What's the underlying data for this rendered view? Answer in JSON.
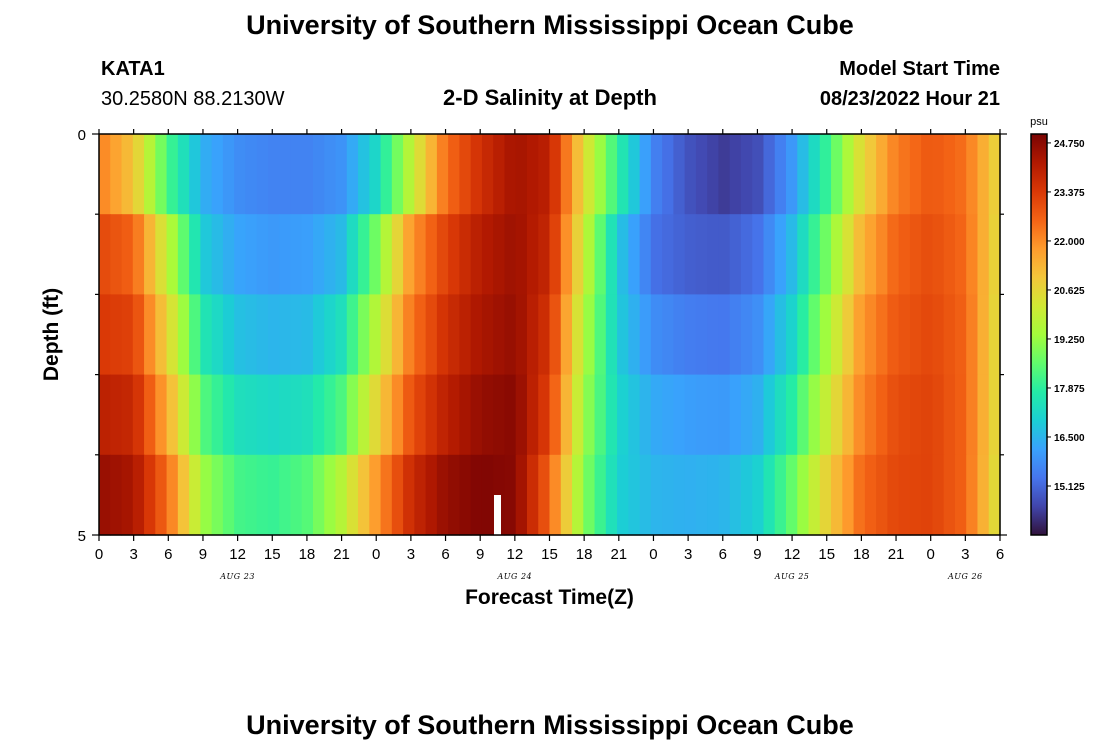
{
  "title": "University of Southern Mississippi Ocean Cube",
  "footer_title": "University of Southern Mississippi Ocean Cube",
  "station": {
    "id": "KATA1",
    "coords": "30.2580N  88.2130W"
  },
  "model": {
    "label": "Model Start Time",
    "value": "08/23/2022 Hour 21"
  },
  "chart_data": {
    "type": "heatmap",
    "title": "2-D Salinity at Depth",
    "xlabel": "Forecast Time(Z)",
    "ylabel": "Depth (ft)",
    "x_tick_labels": [
      "0",
      "3",
      "6",
      "9",
      "12",
      "15",
      "18",
      "21",
      "0",
      "3",
      "6",
      "9",
      "12",
      "15",
      "18",
      "21",
      "0",
      "3",
      "6",
      "9",
      "12",
      "15",
      "18",
      "21",
      "0",
      "3",
      "6"
    ],
    "date_labels": [
      {
        "text": "AUG 23",
        "tick_index": 4
      },
      {
        "text": "AUG 24",
        "tick_index": 12
      },
      {
        "text": "AUG 25",
        "tick_index": 20
      },
      {
        "text": "AUG 26",
        "tick_index": 25
      }
    ],
    "hours": [
      0,
      78
    ],
    "y_tick_labels": [
      "0",
      "5"
    ],
    "depth_range": [
      0,
      5
    ],
    "depth_levels": 5,
    "current_time_hour": 34.5,
    "colorbar": {
      "unit": "psu",
      "min": 13.75,
      "max": 25.0,
      "tick_labels": [
        "24.750",
        "23.375",
        "22.000",
        "20.625",
        "19.250",
        "17.875",
        "16.500",
        "15.125"
      ],
      "colors": [
        "#30123b",
        "#4145ab",
        "#4675ed",
        "#39a2fc",
        "#1bcfd4",
        "#24eca6",
        "#61fc6c",
        "#a4fc3b",
        "#d1e834",
        "#f3c63a",
        "#fe9b2d",
        "#f36315",
        "#d93806",
        "#b11901",
        "#7a0403"
      ]
    },
    "rows": [
      {
        "depth": "0-1",
        "hours": [
          0,
          3,
          6,
          9,
          12,
          15,
          18,
          21,
          24,
          27,
          30,
          33,
          36,
          39,
          42,
          45,
          48,
          51,
          54,
          57,
          60,
          63,
          66,
          69,
          72,
          75,
          78
        ],
        "values": [
          22.2,
          21.0,
          18.2,
          16.4,
          15.8,
          15.6,
          15.6,
          15.9,
          17.2,
          19.8,
          22.4,
          23.6,
          24.4,
          24.0,
          20.5,
          17.8,
          15.6,
          14.8,
          14.4,
          14.7,
          16.0,
          18.0,
          20.5,
          22.2,
          22.8,
          22.4,
          20.5
        ]
      },
      {
        "depth": "1-2",
        "hours": [
          0,
          3,
          6,
          9,
          12,
          15,
          18,
          21,
          24,
          27,
          30,
          33,
          36,
          39,
          42,
          45,
          48,
          51,
          54,
          57,
          60,
          63,
          66,
          69,
          72,
          75,
          78
        ],
        "values": [
          23.1,
          22.6,
          19.8,
          16.9,
          16.2,
          16.0,
          16.1,
          16.6,
          18.8,
          21.8,
          23.2,
          24.1,
          24.5,
          23.8,
          20.0,
          16.8,
          15.3,
          15.0,
          14.9,
          15.3,
          16.6,
          18.8,
          21.3,
          22.6,
          23.0,
          22.5,
          20.4
        ]
      },
      {
        "depth": "2-3",
        "hours": [
          0,
          3,
          6,
          9,
          12,
          15,
          18,
          21,
          24,
          27,
          30,
          33,
          36,
          39,
          42,
          45,
          48,
          51,
          54,
          57,
          60,
          63,
          66,
          69,
          72,
          75,
          78
        ],
        "values": [
          23.4,
          23.2,
          20.6,
          17.6,
          16.7,
          16.5,
          16.6,
          17.4,
          19.7,
          22.3,
          23.6,
          24.3,
          24.6,
          23.5,
          19.6,
          16.9,
          15.8,
          15.5,
          15.4,
          15.8,
          17.1,
          19.4,
          21.8,
          22.8,
          23.1,
          22.6,
          20.3
        ]
      },
      {
        "depth": "3-4",
        "hours": [
          0,
          3,
          6,
          9,
          12,
          15,
          18,
          21,
          24,
          27,
          30,
          33,
          36,
          39,
          42,
          45,
          48,
          51,
          54,
          57,
          60,
          63,
          66,
          69,
          72,
          75,
          78
        ],
        "values": [
          24.0,
          23.8,
          21.4,
          18.4,
          17.4,
          17.2,
          17.4,
          18.3,
          20.6,
          22.9,
          24.0,
          24.6,
          24.8,
          23.2,
          19.3,
          17.1,
          16.3,
          16.1,
          16.0,
          16.4,
          17.8,
          20.0,
          22.1,
          23.0,
          23.2,
          22.6,
          20.3
        ]
      },
      {
        "depth": "4-5",
        "hours": [
          0,
          3,
          6,
          9,
          12,
          15,
          18,
          21,
          24,
          27,
          30,
          33,
          36,
          39,
          42,
          45,
          48,
          51,
          54,
          57,
          60,
          63,
          66,
          69,
          72,
          75,
          78
        ],
        "values": [
          24.6,
          24.3,
          22.4,
          19.3,
          18.2,
          18.0,
          18.4,
          19.7,
          21.8,
          23.7,
          24.6,
          24.9,
          24.8,
          22.6,
          19.0,
          17.0,
          16.5,
          16.4,
          16.5,
          17.0,
          18.6,
          20.7,
          22.5,
          23.1,
          23.2,
          22.6,
          20.2
        ]
      }
    ]
  }
}
